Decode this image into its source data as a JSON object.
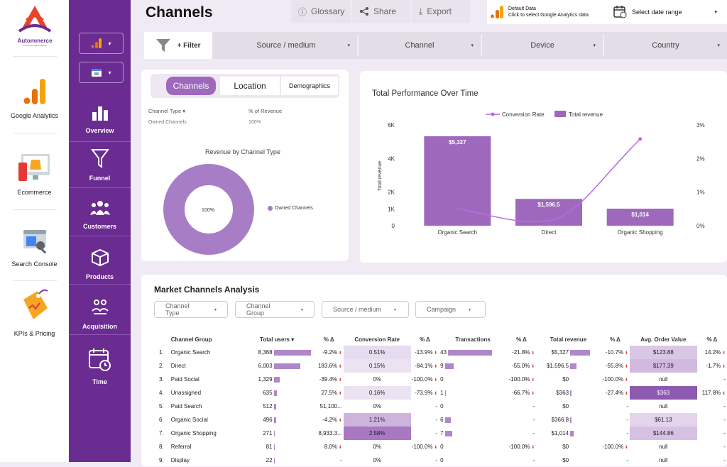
{
  "brand": {
    "name": "Autommerce",
    "tagline": "Commerce with Analytics"
  },
  "sources": [
    {
      "label": "Google Analytics",
      "icon": "google-analytics-icon"
    },
    {
      "label": "Ecommerce",
      "icon": "ecommerce-icon"
    },
    {
      "label": "Search Console",
      "icon": "search-console-icon"
    },
    {
      "label": "KPIs & Pricing",
      "icon": "kpi-tag-icon"
    }
  ],
  "nav": [
    {
      "label": "Overview",
      "icon": "bar-chart-icon"
    },
    {
      "label": "Funnel",
      "icon": "funnel-icon"
    },
    {
      "label": "Customers",
      "icon": "customers-icon"
    },
    {
      "label": "Products",
      "icon": "products-box-icon"
    },
    {
      "label": "Acquisition",
      "icon": "acquisition-icon"
    },
    {
      "label": "Time",
      "icon": "calendar-clock-icon"
    }
  ],
  "header": {
    "title": "Channels",
    "glossary": "Glossary",
    "share": "Share",
    "export": "Export",
    "data_title": "Default Data",
    "data_sub": "Click to select Google Analytics data",
    "date_range": "Select date range"
  },
  "filters": {
    "filter_label": "+ Filter",
    "items": [
      "Source / medium",
      "Channel",
      "Device",
      "Country"
    ]
  },
  "channels_card": {
    "tabs": [
      "Channels",
      "Location",
      "Demographics"
    ],
    "col1": "Channel Type",
    "col2": "% of Revenue",
    "row_label": "Owned Channels",
    "row_value": "100%",
    "donut_title": "Revenue by Channel Type",
    "donut_center": "100%",
    "donut_legend": "Owned Channels",
    "donut_color": "#a77ec6"
  },
  "chart_data": {
    "type": "bar",
    "title": "Total Performance Over Time",
    "categories": [
      "Organic Search",
      "Direct",
      "Organic Shopping"
    ],
    "series": [
      {
        "name": "Total revenue",
        "type": "bar",
        "axis": "left",
        "values": [
          5327,
          1596.5,
          1014
        ],
        "labels": [
          "$5,327",
          "$1,596.5",
          "$1,014"
        ],
        "color": "#9e69bd"
      },
      {
        "name": "Conversion Rate",
        "type": "line",
        "axis": "right",
        "values": [
          0.51,
          0.15,
          2.58
        ],
        "color": "#b96be0"
      }
    ],
    "ylabel": "Total revenue",
    "ylim": [
      0,
      6000
    ],
    "y_ticks": [
      "0",
      "1K",
      "2K",
      "4K",
      "6K"
    ],
    "y2lim": [
      0,
      3
    ],
    "y2_ticks": [
      "0%",
      "1%",
      "2%",
      "3%"
    ],
    "legend": "top"
  },
  "market": {
    "title": "Market Channels Analysis",
    "chips": [
      "Channel Type",
      "Channel Group",
      "Source / medium",
      "Campaign"
    ],
    "headers": [
      "Channel Group",
      "Total users ▾",
      "% Δ",
      "Conversion Rate",
      "% Δ",
      "Transactions",
      "% Δ",
      "Total revenue",
      "% Δ",
      "Avg. Order Value",
      "% Δ"
    ],
    "rows": [
      {
        "n": "1.",
        "group": "Organic Search",
        "users": "8,368",
        "users_pct": 1.0,
        "u_d": "-9.2%",
        "u_dn": true,
        "cr": "0.51%",
        "cr_shade": 0.2,
        "cr_d": "-13.9%",
        "cr_dn": true,
        "tx": "43",
        "tx_pct": 1.0,
        "tx_d": "-21.8%",
        "tx_dn": true,
        "rev": "$5,327",
        "rev_pct": 1.0,
        "rev_d": "-10.7%",
        "rev_dn": true,
        "aov": "$123.88",
        "aov_shade": 0.5,
        "aov_d": "14.2%",
        "aov_dn": true
      },
      {
        "n": "2.",
        "group": "Direct",
        "users": "6,003",
        "users_pct": 0.72,
        "u_d": "183.6%",
        "u_dn": true,
        "cr": "0.15%",
        "cr_shade": 0.07,
        "cr_d": "-84.1%",
        "cr_dn": true,
        "tx": "9",
        "tx_pct": 0.2,
        "tx_d": "-55.0%",
        "tx_dn": true,
        "rev": "$1,596.5",
        "rev_pct": 0.3,
        "rev_d": "-55.8%",
        "rev_dn": true,
        "aov": "$177.39",
        "aov_shade": 0.7,
        "aov_d": "-1.7%",
        "aov_dn": true
      },
      {
        "n": "3.",
        "group": "Paid Social",
        "users": "1,329",
        "users_pct": 0.16,
        "u_d": "-39.4%",
        "u_dn": true,
        "cr": "0%",
        "cr_shade": 0,
        "cr_d": "-100.0%",
        "cr_dn": true,
        "tx": "0",
        "tx_pct": 0,
        "tx_d": "-100.0%",
        "tx_dn": true,
        "rev": "$0",
        "rev_pct": 0,
        "rev_d": "-100.0%",
        "rev_dn": true,
        "aov": "null",
        "aov_shade": 0,
        "aov_d": "-",
        "aov_dn": false
      },
      {
        "n": "4.",
        "group": "Unassigned",
        "users": "635",
        "users_pct": 0.08,
        "u_d": "27.5%",
        "u_dn": true,
        "cr": "0.16%",
        "cr_shade": 0.07,
        "cr_d": "-73.9%",
        "cr_dn": true,
        "tx": "1",
        "tx_pct": 0.02,
        "tx_d": "-66.7%",
        "tx_dn": true,
        "rev": "$363",
        "rev_pct": 0.07,
        "rev_d": "-27.4%",
        "rev_dn": true,
        "aov": "$363",
        "aov_shade": 1.0,
        "aov_d": "117.8%",
        "aov_dn": true
      },
      {
        "n": "5.",
        "group": "Paid Search",
        "users": "512",
        "users_pct": 0.06,
        "u_d": "51,100...",
        "u_dn": false,
        "cr": "0%",
        "cr_shade": 0,
        "cr_d": "-",
        "cr_dn": false,
        "tx": "0",
        "tx_pct": 0,
        "tx_d": "-",
        "tx_dn": false,
        "rev": "$0",
        "rev_pct": 0,
        "rev_d": "-",
        "rev_dn": false,
        "aov": "null",
        "aov_shade": 0,
        "aov_d": "-",
        "aov_dn": false
      },
      {
        "n": "6.",
        "group": "Organic Social",
        "users": "496",
        "users_pct": 0.06,
        "u_d": "-4.2%",
        "u_dn": true,
        "cr": "1.21%",
        "cr_shade": 0.5,
        "cr_d": "-",
        "cr_dn": false,
        "tx": "6",
        "tx_pct": 0.14,
        "tx_d": "-",
        "tx_dn": false,
        "rev": "$366.8",
        "rev_pct": 0.07,
        "rev_d": "-",
        "rev_dn": false,
        "aov": "$61.13",
        "aov_shade": 0.3,
        "aov_d": "-",
        "aov_dn": false
      },
      {
        "n": "7.",
        "group": "Organic Shopping",
        "users": "271",
        "users_pct": 0.03,
        "u_d": "8,933.3...",
        "u_dn": false,
        "cr": "2.58%",
        "cr_shade": 1.0,
        "cr_d": "-",
        "cr_dn": false,
        "tx": "7",
        "tx_pct": 0.16,
        "tx_d": "-",
        "tx_dn": false,
        "rev": "$1,014",
        "rev_pct": 0.19,
        "rev_d": "-",
        "rev_dn": false,
        "aov": "$144.86",
        "aov_shade": 0.6,
        "aov_d": "-",
        "aov_dn": false
      },
      {
        "n": "8.",
        "group": "Referral",
        "users": "81",
        "users_pct": 0.01,
        "u_d": "8.0%",
        "u_dn": true,
        "cr": "0%",
        "cr_shade": 0,
        "cr_d": "-100.0%",
        "cr_dn": true,
        "tx": "0",
        "tx_pct": 0,
        "tx_d": "-100.0%",
        "tx_dn": true,
        "rev": "$0",
        "rev_pct": 0,
        "rev_d": "-100.0%",
        "rev_dn": true,
        "aov": "null",
        "aov_shade": 0,
        "aov_d": "-",
        "aov_dn": false
      },
      {
        "n": "9.",
        "group": "Display",
        "users": "22",
        "users_pct": 0.003,
        "u_d": "-",
        "u_dn": false,
        "cr": "0%",
        "cr_shade": 0,
        "cr_d": "-",
        "cr_dn": false,
        "tx": "0",
        "tx_pct": 0,
        "tx_d": "-",
        "tx_dn": false,
        "rev": "$0",
        "rev_pct": 0,
        "rev_d": "-",
        "rev_dn": false,
        "aov": "null",
        "aov_shade": 0,
        "aov_d": "-",
        "aov_dn": false
      }
    ]
  },
  "colors": {
    "brand_purple": "#6a2c91",
    "accent": "#9e69bd",
    "bar_light": "#b187cc"
  }
}
